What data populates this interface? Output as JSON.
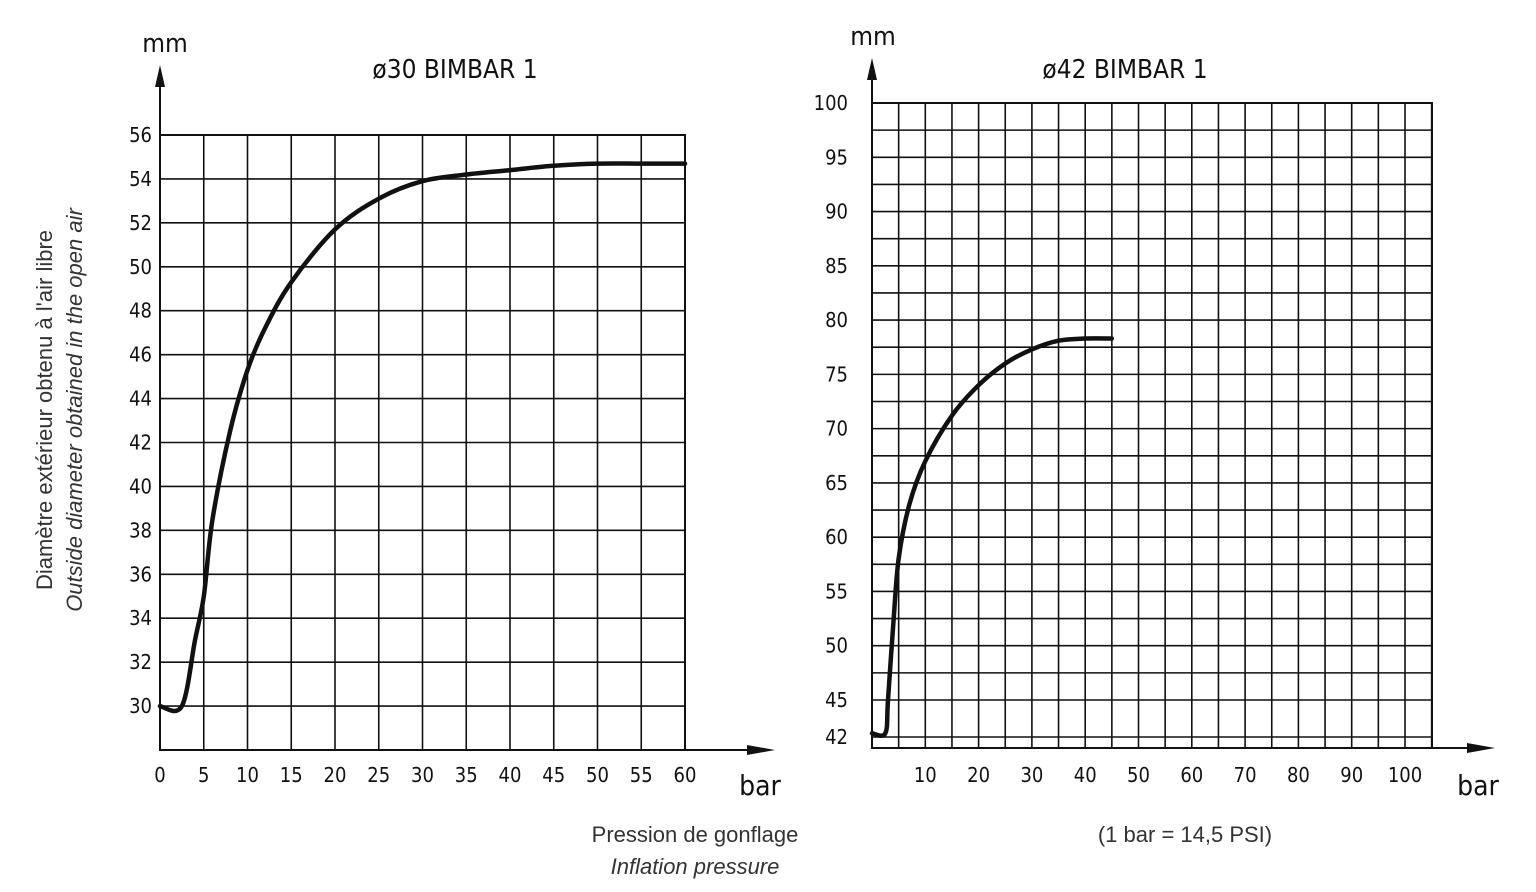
{
  "chart_data": [
    {
      "type": "line",
      "title": "ø30 BIMBAR 1",
      "ylabel": "mm",
      "xlabel": "bar",
      "xlim": [
        0,
        60
      ],
      "ylim": [
        28,
        56
      ],
      "xticks": [
        0,
        5,
        10,
        15,
        20,
        25,
        30,
        35,
        40,
        45,
        50,
        55,
        60
      ],
      "yticks": [
        30,
        32,
        34,
        36,
        38,
        40,
        42,
        44,
        46,
        48,
        50,
        52,
        54,
        56
      ],
      "grid": true,
      "series": [
        {
          "name": "ø30 BIMBAR 1",
          "x": [
            0,
            2.5,
            4,
            5,
            6,
            8,
            10,
            12,
            15,
            20,
            25,
            30,
            35,
            40,
            45,
            50,
            55,
            60
          ],
          "y": [
            30,
            30,
            33,
            35,
            38.5,
            42.5,
            45.3,
            47.2,
            49.3,
            51.7,
            53.1,
            53.9,
            54.2,
            54.4,
            54.6,
            54.7,
            54.7,
            54.7
          ]
        }
      ]
    },
    {
      "type": "line",
      "title": "ø42 BIMBAR 1",
      "ylabel": "mm",
      "xlabel": "bar",
      "xlim": [
        0,
        105
      ],
      "ylim": [
        42,
        100
      ],
      "xticks": [
        10,
        20,
        30,
        40,
        50,
        60,
        70,
        80,
        90,
        100
      ],
      "yticks": [
        42,
        45,
        50,
        55,
        60,
        65,
        70,
        75,
        80,
        85,
        90,
        95,
        100
      ],
      "grid": true,
      "series": [
        {
          "name": "ø42 BIMBAR 1",
          "x": [
            0,
            2.5,
            3,
            4,
            5,
            7,
            10,
            15,
            20,
            25,
            30,
            35,
            40,
            45
          ],
          "y": [
            42.3,
            42.3,
            45,
            52,
            58,
            63,
            67,
            71.2,
            74,
            76,
            77.3,
            78.1,
            78.3,
            78.3
          ]
        }
      ]
    }
  ],
  "captions": {
    "y_axis_fr": "Diamètre extérieur obtenu à l'air libre",
    "y_axis_en": "Outside diameter obtained in the open air",
    "x_axis_fr": "Pression de gonflage",
    "x_axis_en": "Inflation pressure",
    "conversion": "(1 bar = 14,5 PSI)"
  },
  "colors": {
    "ink": "#111111",
    "caption": "#333333"
  }
}
